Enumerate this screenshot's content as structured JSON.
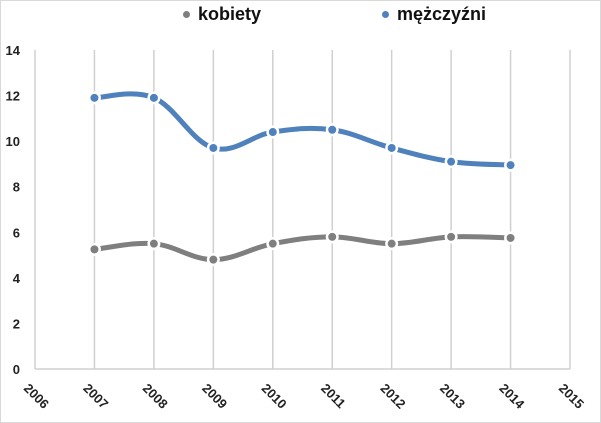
{
  "legend": {
    "items": [
      {
        "label": "kobiety",
        "color": "#7f7f7f"
      },
      {
        "label": "mężczyźni",
        "color": "#4f81bd"
      }
    ]
  },
  "chart_data": {
    "type": "line",
    "title": "",
    "xlabel": "",
    "ylabel": "",
    "x_ticks": [
      "2006",
      "2007",
      "2008",
      "2009",
      "2010",
      "2011",
      "2012",
      "2013",
      "2014",
      "2015"
    ],
    "y_ticks": [
      "0",
      "2",
      "4",
      "6",
      "8",
      "10",
      "12",
      "14"
    ],
    "xlim": [
      2006,
      2015
    ],
    "ylim": [
      0,
      14
    ],
    "grid": "vertical",
    "legend_position": "top",
    "smooth": true,
    "x": [
      2007,
      2008,
      2009,
      2010,
      2011,
      2012,
      2013,
      2014
    ],
    "series": [
      {
        "name": "kobiety",
        "color": "#7f7f7f",
        "values": [
          5.25,
          5.5,
          4.8,
          5.5,
          5.8,
          5.5,
          5.8,
          5.75
        ]
      },
      {
        "name": "mężczyźni",
        "color": "#4f81bd",
        "values": [
          11.9,
          11.9,
          9.7,
          10.4,
          10.5,
          9.7,
          9.1,
          8.95
        ]
      }
    ]
  }
}
